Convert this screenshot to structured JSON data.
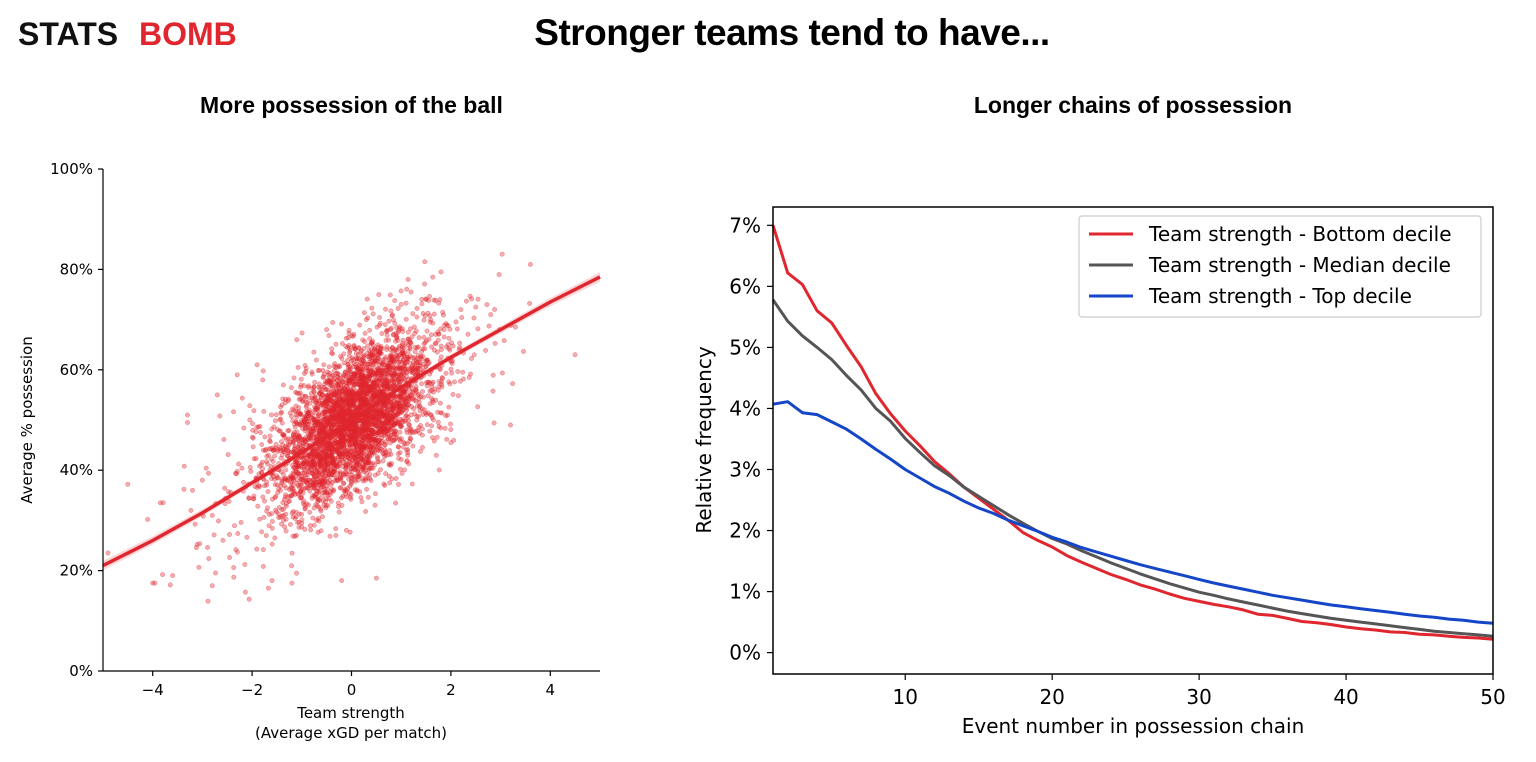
{
  "logo": {
    "text_a": "STATS",
    "text_b": "BOMB"
  },
  "header": {
    "title": "Stronger teams tend to have..."
  },
  "chart_data": [
    {
      "type": "scatter",
      "title": "More possession of the ball",
      "xlabel": "Team strength",
      "xlabel_line2": "(Average xGD per match)",
      "ylabel": "Average % possession",
      "xlim": [
        -5,
        5
      ],
      "ylim": [
        0,
        100
      ],
      "x_ticks": [
        -4,
        -2,
        0,
        2,
        4
      ],
      "x_tick_labels": [
        "−4",
        "−2",
        "0",
        "2",
        "4"
      ],
      "y_ticks": [
        0,
        20,
        40,
        60,
        80,
        100
      ],
      "y_tick_labels": [
        "0%",
        "20%",
        "40%",
        "60%",
        "80%",
        "100%"
      ],
      "grid": false,
      "point_color": "#e0262e",
      "trend": {
        "x": [
          -5,
          -4,
          -3,
          -2,
          -1,
          0,
          1,
          2,
          3,
          4,
          5
        ],
        "y": [
          21,
          26,
          31.5,
          37.5,
          43.5,
          50,
          56.5,
          62.5,
          68,
          73.5,
          78.5
        ],
        "color": "#e0262e"
      },
      "outlier_points": [
        [
          -4.9,
          23.5
        ],
        [
          -4.5,
          37.2
        ],
        [
          -4.1,
          30.2
        ],
        [
          -4.0,
          17.5
        ],
        [
          -3.8,
          19.2
        ],
        [
          -3.6,
          19.0
        ],
        [
          -3.3,
          51.0
        ],
        [
          -3.3,
          49.5
        ],
        [
          -3.2,
          36.0
        ],
        [
          -3.0,
          38.0
        ],
        [
          -2.8,
          17.0
        ],
        [
          -2.8,
          31.0
        ],
        [
          -2.7,
          55.0
        ],
        [
          -2.3,
          59.0
        ],
        [
          -1.9,
          61.0
        ],
        [
          -1.6,
          18.0
        ],
        [
          -1.2,
          17.5
        ],
        [
          -1.1,
          66.0
        ],
        [
          -0.5,
          68.0
        ],
        [
          -0.2,
          18.0
        ],
        [
          0.3,
          70.0
        ],
        [
          0.5,
          18.5
        ],
        [
          1.0,
          73.0
        ],
        [
          1.5,
          74.0
        ],
        [
          1.8,
          79.5
        ],
        [
          2.0,
          45.5
        ],
        [
          2.2,
          72.0
        ],
        [
          2.5,
          72.5
        ],
        [
          2.8,
          71.0
        ],
        [
          3.2,
          49.0
        ],
        [
          3.3,
          68.5
        ],
        [
          3.6,
          81.0
        ],
        [
          4.5,
          63.0
        ]
      ]
    },
    {
      "type": "line",
      "title": "Longer chains of possession",
      "xlabel": "Event number in possession chain",
      "ylabel": "Relative frequency",
      "xlim": [
        1,
        50
      ],
      "ylim": [
        -0.35,
        7.3
      ],
      "x_ticks": [
        10,
        20,
        30,
        40,
        50
      ],
      "y_ticks": [
        0,
        1,
        2,
        3,
        4,
        5,
        6,
        7
      ],
      "y_tick_labels": [
        "0%",
        "1%",
        "2%",
        "3%",
        "4%",
        "5%",
        "6%",
        "7%"
      ],
      "grid": false,
      "legend_position": "top-right",
      "x": [
        1,
        2,
        3,
        4,
        5,
        6,
        7,
        8,
        9,
        10,
        11,
        12,
        13,
        14,
        15,
        16,
        17,
        18,
        19,
        20,
        21,
        22,
        23,
        24,
        25,
        26,
        27,
        28,
        29,
        30,
        31,
        32,
        33,
        34,
        35,
        36,
        37,
        38,
        39,
        40,
        41,
        42,
        43,
        44,
        45,
        46,
        47,
        48,
        49,
        50
      ],
      "series": [
        {
          "name": "Team strength - Bottom decile",
          "color": "#e0262e",
          "values": [
            7.0,
            6.22,
            6.03,
            5.6,
            5.4,
            5.03,
            4.68,
            4.24,
            3.91,
            3.63,
            3.39,
            3.13,
            2.93,
            2.71,
            2.53,
            2.35,
            2.17,
            1.97,
            1.84,
            1.73,
            1.59,
            1.48,
            1.38,
            1.28,
            1.2,
            1.11,
            1.04,
            0.96,
            0.89,
            0.84,
            0.79,
            0.75,
            0.7,
            0.63,
            0.61,
            0.56,
            0.51,
            0.49,
            0.46,
            0.42,
            0.39,
            0.37,
            0.34,
            0.33,
            0.3,
            0.29,
            0.27,
            0.25,
            0.24,
            0.22
          ]
        },
        {
          "name": "Team strength - Median decile",
          "color": "#555555",
          "values": [
            5.78,
            5.43,
            5.19,
            5.0,
            4.8,
            4.54,
            4.3,
            4.0,
            3.79,
            3.51,
            3.28,
            3.06,
            2.9,
            2.71,
            2.56,
            2.41,
            2.26,
            2.12,
            1.99,
            1.87,
            1.78,
            1.67,
            1.57,
            1.47,
            1.38,
            1.29,
            1.21,
            1.13,
            1.06,
            0.99,
            0.94,
            0.88,
            0.83,
            0.78,
            0.73,
            0.68,
            0.64,
            0.6,
            0.56,
            0.53,
            0.5,
            0.47,
            0.44,
            0.41,
            0.38,
            0.35,
            0.33,
            0.31,
            0.29,
            0.27
          ]
        },
        {
          "name": "Team strength - Top decile",
          "color": "#1546c8",
          "values": [
            4.07,
            4.11,
            3.93,
            3.9,
            3.78,
            3.66,
            3.5,
            3.33,
            3.17,
            3.0,
            2.86,
            2.72,
            2.61,
            2.48,
            2.37,
            2.28,
            2.17,
            2.08,
            1.99,
            1.89,
            1.81,
            1.72,
            1.65,
            1.58,
            1.51,
            1.44,
            1.38,
            1.32,
            1.26,
            1.2,
            1.14,
            1.09,
            1.04,
            0.99,
            0.94,
            0.9,
            0.86,
            0.82,
            0.78,
            0.75,
            0.72,
            0.69,
            0.66,
            0.63,
            0.6,
            0.58,
            0.55,
            0.53,
            0.5,
            0.48
          ]
        }
      ]
    }
  ]
}
